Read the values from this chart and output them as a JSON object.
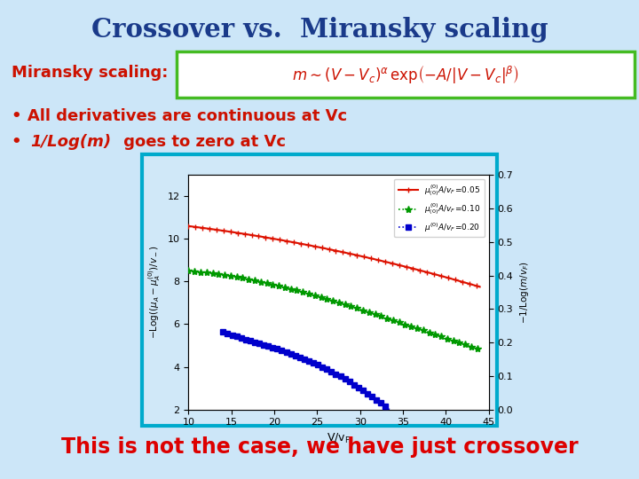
{
  "title": "Crossover vs.  Miransky scaling",
  "title_color": "#1a3a8a",
  "slide_bg_top": "#ddeeff",
  "slide_bg_bot": "#aaccee",
  "miransky_label": "Miransky scaling:",
  "bullet1_prefix": "• All derivatives are continuous at Vc",
  "bullet2_prefix": "• ",
  "bullet2_italic": "1/Log(m)",
  "bullet2_rest": " goes to zero at Vc",
  "bottom_text": "This is not the case, we have just crossover",
  "formula_box_color": "#44aa22",
  "plot_border_color": "#00bbcc",
  "xlim": [
    10,
    45
  ],
  "xticks": [
    10,
    15,
    20,
    25,
    30,
    35,
    40,
    45
  ],
  "ylim_left": [
    2,
    13
  ],
  "yticks_left": [
    2,
    4,
    6,
    8,
    10,
    12
  ],
  "ylim_right": [
    0,
    0.7
  ],
  "yticks_right": [
    0,
    0.1,
    0.2,
    0.3,
    0.4,
    0.5,
    0.6,
    0.7
  ],
  "red_col": "#dd1100",
  "green_col": "#009900",
  "blue_col": "#0000cc"
}
